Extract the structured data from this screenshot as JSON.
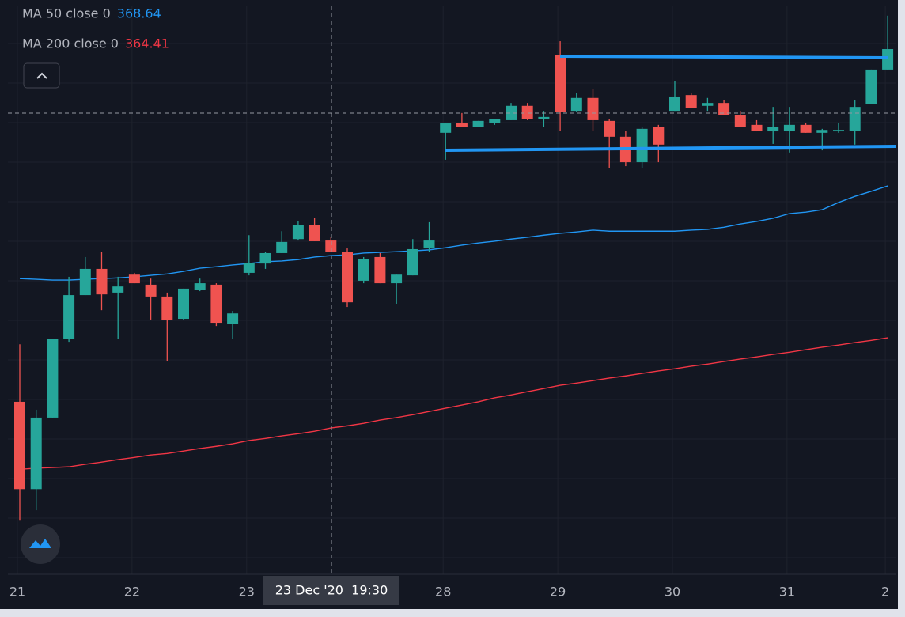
{
  "chart_data": {
    "type": "candlestick",
    "categories": [
      "21",
      null,
      null,
      null,
      null,
      null,
      null,
      "22",
      null,
      null,
      null,
      null,
      null,
      null,
      "23",
      null,
      null,
      null,
      null,
      null,
      null,
      null,
      null,
      null,
      null,
      null,
      "28",
      null,
      null,
      null,
      null,
      null,
      null,
      "29",
      null,
      null,
      null,
      null,
      null,
      null,
      "30",
      null,
      null,
      null,
      null,
      null,
      null,
      "31",
      null,
      null,
      null,
      null,
      null,
      "2"
    ],
    "open": [
      362.63,
      360.2,
      362.19,
      364.39,
      365.6,
      366.33,
      365.67,
      366.17,
      365.89,
      365.56,
      364.94,
      365.75,
      365.89,
      364.79,
      366.22,
      366.48,
      366.77,
      367.16,
      367.54,
      367.12,
      366.81,
      366.0,
      366.66,
      365.93,
      366.15,
      366.9,
      370.12,
      370.4,
      370.29,
      370.4,
      370.47,
      370.87,
      370.51,
      372.28,
      370.73,
      371.09,
      370.45,
      370.01,
      369.3,
      370.29,
      370.73,
      371.17,
      370.87,
      370.95,
      370.62,
      370.34,
      370.16,
      370.18,
      370.34,
      370.12,
      370.16,
      370.18,
      370.91,
      371.88
    ],
    "high": [
      364.23,
      362.41,
      364.39,
      366.11,
      366.66,
      366.81,
      366.11,
      366.22,
      366.06,
      365.67,
      365.78,
      366.06,
      365.93,
      365.16,
      367.27,
      366.81,
      367.38,
      367.65,
      367.76,
      367.21,
      366.9,
      366.66,
      366.77,
      366.17,
      367.16,
      367.63,
      370.38,
      370.67,
      370.45,
      370.51,
      370.95,
      370.95,
      370.73,
      372.67,
      371.22,
      371.35,
      370.51,
      370.18,
      370.29,
      370.34,
      371.57,
      371.22,
      371.09,
      371.02,
      370.73,
      370.47,
      370.84,
      370.84,
      370.4,
      370.23,
      370.4,
      371.02,
      371.88,
      373.38
    ],
    "low": [
      359.32,
      359.61,
      362.19,
      364.3,
      365.6,
      365.18,
      364.39,
      365.93,
      364.92,
      363.77,
      364.9,
      365.71,
      364.74,
      364.39,
      366.15,
      366.33,
      366.77,
      367.12,
      367.1,
      366.81,
      365.27,
      365.93,
      365.93,
      365.36,
      366.15,
      366.81,
      369.37,
      370.29,
      370.29,
      370.34,
      370.47,
      370.47,
      370.29,
      370.18,
      370.69,
      370.18,
      369.13,
      369.19,
      369.13,
      369.3,
      370.73,
      370.82,
      370.73,
      370.62,
      370.29,
      370.16,
      369.81,
      369.57,
      370.12,
      369.63,
      370.12,
      369.79,
      370.91,
      371.88
    ],
    "close": [
      360.2,
      362.19,
      364.39,
      365.6,
      366.33,
      365.62,
      365.84,
      365.93,
      365.56,
      364.9,
      365.78,
      365.93,
      364.83,
      365.09,
      366.5,
      366.77,
      367.08,
      367.54,
      367.1,
      366.81,
      365.4,
      366.61,
      365.93,
      366.17,
      366.88,
      367.12,
      370.38,
      370.29,
      370.45,
      370.51,
      370.87,
      370.51,
      370.56,
      370.69,
      371.09,
      370.47,
      370.01,
      369.3,
      370.23,
      369.79,
      371.13,
      370.82,
      370.95,
      370.62,
      370.29,
      370.18,
      370.29,
      370.34,
      370.12,
      370.2,
      370.2,
      370.84,
      371.88,
      372.45
    ],
    "up_color": "#26a69a",
    "down_color": "#ef5350",
    "series": [
      {
        "name": "MA 50 close 0",
        "color": "#2196f3",
        "values": [
          366.06,
          366.04,
          366.02,
          366.02,
          366.04,
          366.06,
          366.08,
          366.11,
          366.15,
          366.19,
          366.26,
          366.35,
          366.39,
          366.44,
          366.48,
          366.53,
          366.55,
          366.59,
          366.66,
          366.7,
          366.72,
          366.77,
          366.79,
          366.81,
          366.83,
          366.86,
          366.92,
          366.99,
          367.05,
          367.1,
          367.16,
          367.21,
          367.27,
          367.32,
          367.36,
          367.41,
          367.38,
          367.38,
          367.38,
          367.38,
          367.38,
          367.41,
          367.43,
          367.49,
          367.58,
          367.65,
          367.74,
          367.87,
          367.91,
          367.98,
          368.18,
          368.35,
          368.49,
          368.64
        ]
      },
      {
        "name": "MA 200 close 0",
        "color": "#f23645",
        "values": [
          360.75,
          360.78,
          360.8,
          360.82,
          360.89,
          360.95,
          361.02,
          361.08,
          361.15,
          361.19,
          361.26,
          361.33,
          361.39,
          361.46,
          361.55,
          361.61,
          361.68,
          361.74,
          361.81,
          361.9,
          361.96,
          362.03,
          362.12,
          362.19,
          362.27,
          362.36,
          362.45,
          362.54,
          362.63,
          362.74,
          362.82,
          362.91,
          363.0,
          363.09,
          363.15,
          363.22,
          363.29,
          363.35,
          363.42,
          363.49,
          363.55,
          363.62,
          363.68,
          363.75,
          363.82,
          363.88,
          363.95,
          364.01,
          364.08,
          364.15,
          364.21,
          364.28,
          364.34,
          364.41
        ]
      }
    ],
    "ylim": [
      357.85,
      373.64
    ],
    "crosshair_label": "23 Dec '20  19:30"
  }
}
